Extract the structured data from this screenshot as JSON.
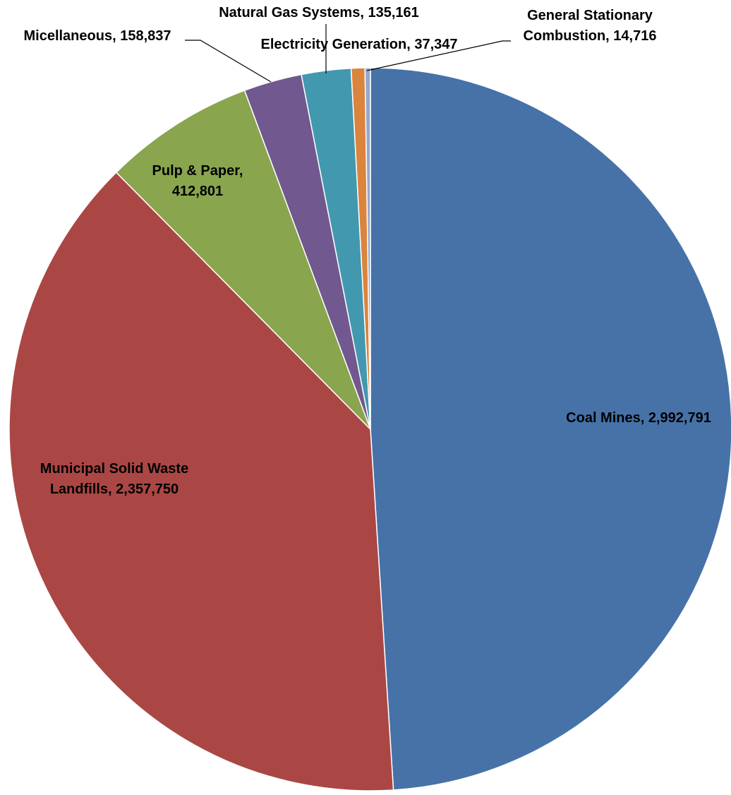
{
  "chart_data": {
    "type": "pie",
    "start_angle_deg": 0,
    "direction": "clockwise",
    "slices": [
      {
        "label": "Coal Mines",
        "value": 2992791,
        "value_text": "2,992,791",
        "color": "#4672A8"
      },
      {
        "label": "Municipal Solid Waste Landfills",
        "value": 2357750,
        "value_text": "2,357,750",
        "color": "#AA4744"
      },
      {
        "label": "Pulp & Paper",
        "value": 412801,
        "value_text": "412,801",
        "color": "#89A54E"
      },
      {
        "label": "Micellaneous",
        "value": 158837,
        "value_text": "158,837",
        "color": "#71588F"
      },
      {
        "label": "Natural Gas Systems",
        "value": 135161,
        "value_text": "135,161",
        "color": "#4298AF"
      },
      {
        "label": "Electricity Generation",
        "value": 37347,
        "value_text": "37,347",
        "color": "#DB843D"
      },
      {
        "label": "General Stationary Combustion",
        "value": 14716,
        "value_text": "14,716",
        "color": "#93A9CF"
      }
    ],
    "data_labels": [
      {
        "lines": [
          "Coal Mines, 2,992,791"
        ]
      },
      {
        "lines": [
          "Municipal Solid Waste",
          "Landfills, 2,357,750"
        ]
      },
      {
        "lines": [
          "Pulp & Paper,",
          "412,801"
        ]
      },
      {
        "lines": [
          "Micellaneous, 158,837"
        ]
      },
      {
        "lines": [
          "Natural Gas Systems, 135,161"
        ]
      },
      {
        "lines": [
          "Electricity Generation, 37,347"
        ]
      },
      {
        "lines": [
          "General Stationary",
          "Combustion, 14,716"
        ]
      }
    ]
  }
}
